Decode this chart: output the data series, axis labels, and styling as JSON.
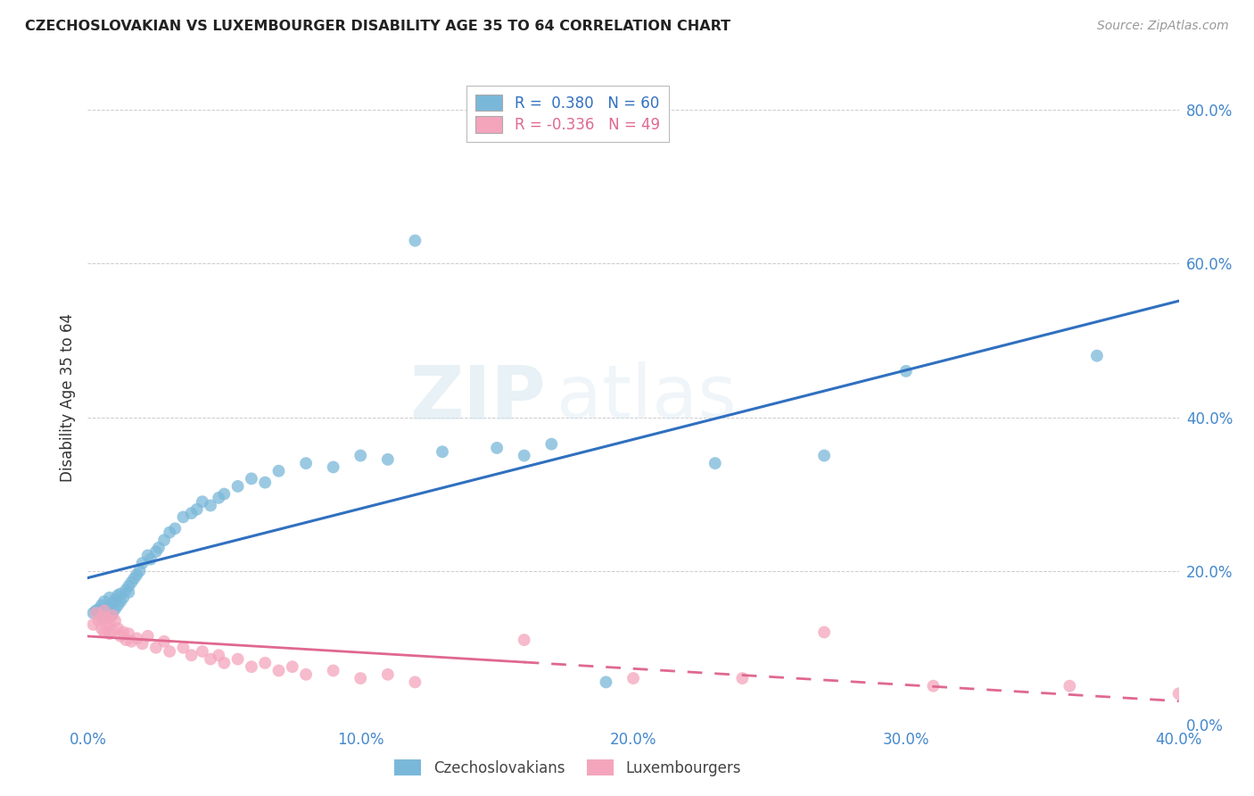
{
  "title": "CZECHOSLOVAKIAN VS LUXEMBOURGER DISABILITY AGE 35 TO 64 CORRELATION CHART",
  "source": "Source: ZipAtlas.com",
  "ylabel": "Disability Age 35 to 64",
  "xlim": [
    0.0,
    0.4
  ],
  "ylim": [
    0.0,
    0.85
  ],
  "xticks": [
    0.0,
    0.1,
    0.2,
    0.3,
    0.4
  ],
  "yticks": [
    0.0,
    0.2,
    0.4,
    0.6,
    0.8
  ],
  "xticklabels": [
    "0.0%",
    "10.0%",
    "20.0%",
    "30.0%",
    "40.0%"
  ],
  "yticklabels": [
    "0.0%",
    "20.0%",
    "40.0%",
    "60.0%",
    "80.0%"
  ],
  "blue_R": 0.38,
  "blue_N": 60,
  "pink_R": -0.336,
  "pink_N": 49,
  "blue_color": "#7ab8d9",
  "pink_color": "#f4a5bc",
  "blue_line_color": "#3070c0",
  "pink_line_color": "#e06890",
  "watermark_zip": "ZIP",
  "watermark_atlas": "atlas",
  "blue_scatter_x": [
    0.002,
    0.003,
    0.004,
    0.005,
    0.005,
    0.006,
    0.006,
    0.007,
    0.007,
    0.008,
    0.008,
    0.009,
    0.009,
    0.01,
    0.01,
    0.011,
    0.011,
    0.012,
    0.012,
    0.013,
    0.014,
    0.015,
    0.015,
    0.016,
    0.017,
    0.018,
    0.019,
    0.02,
    0.022,
    0.023,
    0.025,
    0.026,
    0.028,
    0.03,
    0.032,
    0.035,
    0.038,
    0.04,
    0.042,
    0.045,
    0.048,
    0.05,
    0.055,
    0.06,
    0.065,
    0.07,
    0.08,
    0.09,
    0.1,
    0.11,
    0.12,
    0.13,
    0.15,
    0.16,
    0.17,
    0.19,
    0.23,
    0.27,
    0.3,
    0.37
  ],
  "blue_scatter_y": [
    0.145,
    0.148,
    0.15,
    0.142,
    0.155,
    0.138,
    0.16,
    0.145,
    0.152,
    0.14,
    0.165,
    0.143,
    0.158,
    0.15,
    0.162,
    0.155,
    0.168,
    0.16,
    0.17,
    0.165,
    0.175,
    0.18,
    0.172,
    0.185,
    0.19,
    0.195,
    0.2,
    0.21,
    0.22,
    0.215,
    0.225,
    0.23,
    0.24,
    0.25,
    0.255,
    0.27,
    0.275,
    0.28,
    0.29,
    0.285,
    0.295,
    0.3,
    0.31,
    0.32,
    0.315,
    0.33,
    0.34,
    0.335,
    0.35,
    0.345,
    0.63,
    0.355,
    0.36,
    0.35,
    0.365,
    0.055,
    0.34,
    0.35,
    0.46,
    0.48
  ],
  "pink_scatter_x": [
    0.002,
    0.003,
    0.004,
    0.005,
    0.005,
    0.006,
    0.006,
    0.007,
    0.007,
    0.008,
    0.008,
    0.009,
    0.009,
    0.01,
    0.011,
    0.012,
    0.013,
    0.014,
    0.015,
    0.016,
    0.018,
    0.02,
    0.022,
    0.025,
    0.028,
    0.03,
    0.035,
    0.038,
    0.042,
    0.045,
    0.048,
    0.05,
    0.055,
    0.06,
    0.065,
    0.07,
    0.075,
    0.08,
    0.09,
    0.1,
    0.11,
    0.12,
    0.16,
    0.2,
    0.24,
    0.27,
    0.31,
    0.36,
    0.4
  ],
  "pink_scatter_y": [
    0.13,
    0.145,
    0.135,
    0.14,
    0.125,
    0.148,
    0.12,
    0.138,
    0.128,
    0.132,
    0.118,
    0.142,
    0.122,
    0.135,
    0.125,
    0.115,
    0.12,
    0.11,
    0.118,
    0.108,
    0.112,
    0.105,
    0.115,
    0.1,
    0.108,
    0.095,
    0.1,
    0.09,
    0.095,
    0.085,
    0.09,
    0.08,
    0.085,
    0.075,
    0.08,
    0.07,
    0.075,
    0.065,
    0.07,
    0.06,
    0.065,
    0.055,
    0.11,
    0.06,
    0.06,
    0.12,
    0.05,
    0.05,
    0.04
  ],
  "pink_solid_xlim": [
    0.0,
    0.16
  ],
  "pink_dashed_xlim": [
    0.16,
    0.4
  ]
}
